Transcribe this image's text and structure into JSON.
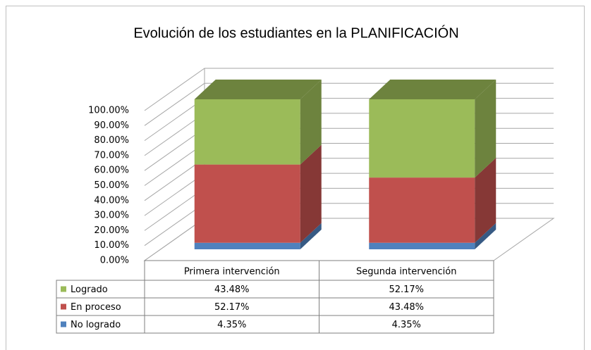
{
  "chart_data": {
    "type": "bar3d_stacked",
    "title": "Evolución de los estudiantes en la PLANIFICACIÓN",
    "categories": [
      "Primera intervención",
      "Segunda intervención"
    ],
    "series": [
      {
        "name": "Logrado",
        "color": "#9bbb59",
        "values": [
          43.48,
          52.17
        ],
        "value_labels": [
          "43.48%",
          "52.17%"
        ]
      },
      {
        "name": "En proceso",
        "color": "#c0504d",
        "values": [
          52.17,
          43.48
        ],
        "value_labels": [
          "52.17%",
          "43.48%"
        ]
      },
      {
        "name": "No logrado",
        "color": "#4f81bd",
        "values": [
          4.35,
          4.35
        ],
        "value_labels": [
          "4.35%",
          "4.35%"
        ]
      }
    ],
    "ylim": [
      0,
      100
    ],
    "yticks": [
      {
        "value": 0,
        "label": "0.00%"
      },
      {
        "value": 10,
        "label": "10.00%"
      },
      {
        "value": 20,
        "label": "20.00%"
      },
      {
        "value": 30,
        "label": "30.00%"
      },
      {
        "value": 40,
        "label": "40.00%"
      },
      {
        "value": 50,
        "label": "50.00%"
      },
      {
        "value": 60,
        "label": "60.00%"
      },
      {
        "value": 70,
        "label": "70.00%"
      },
      {
        "value": 80,
        "label": "80.00%"
      },
      {
        "value": 90,
        "label": "90.00%"
      },
      {
        "value": 100,
        "label": "100.00%"
      }
    ],
    "grid": true
  }
}
